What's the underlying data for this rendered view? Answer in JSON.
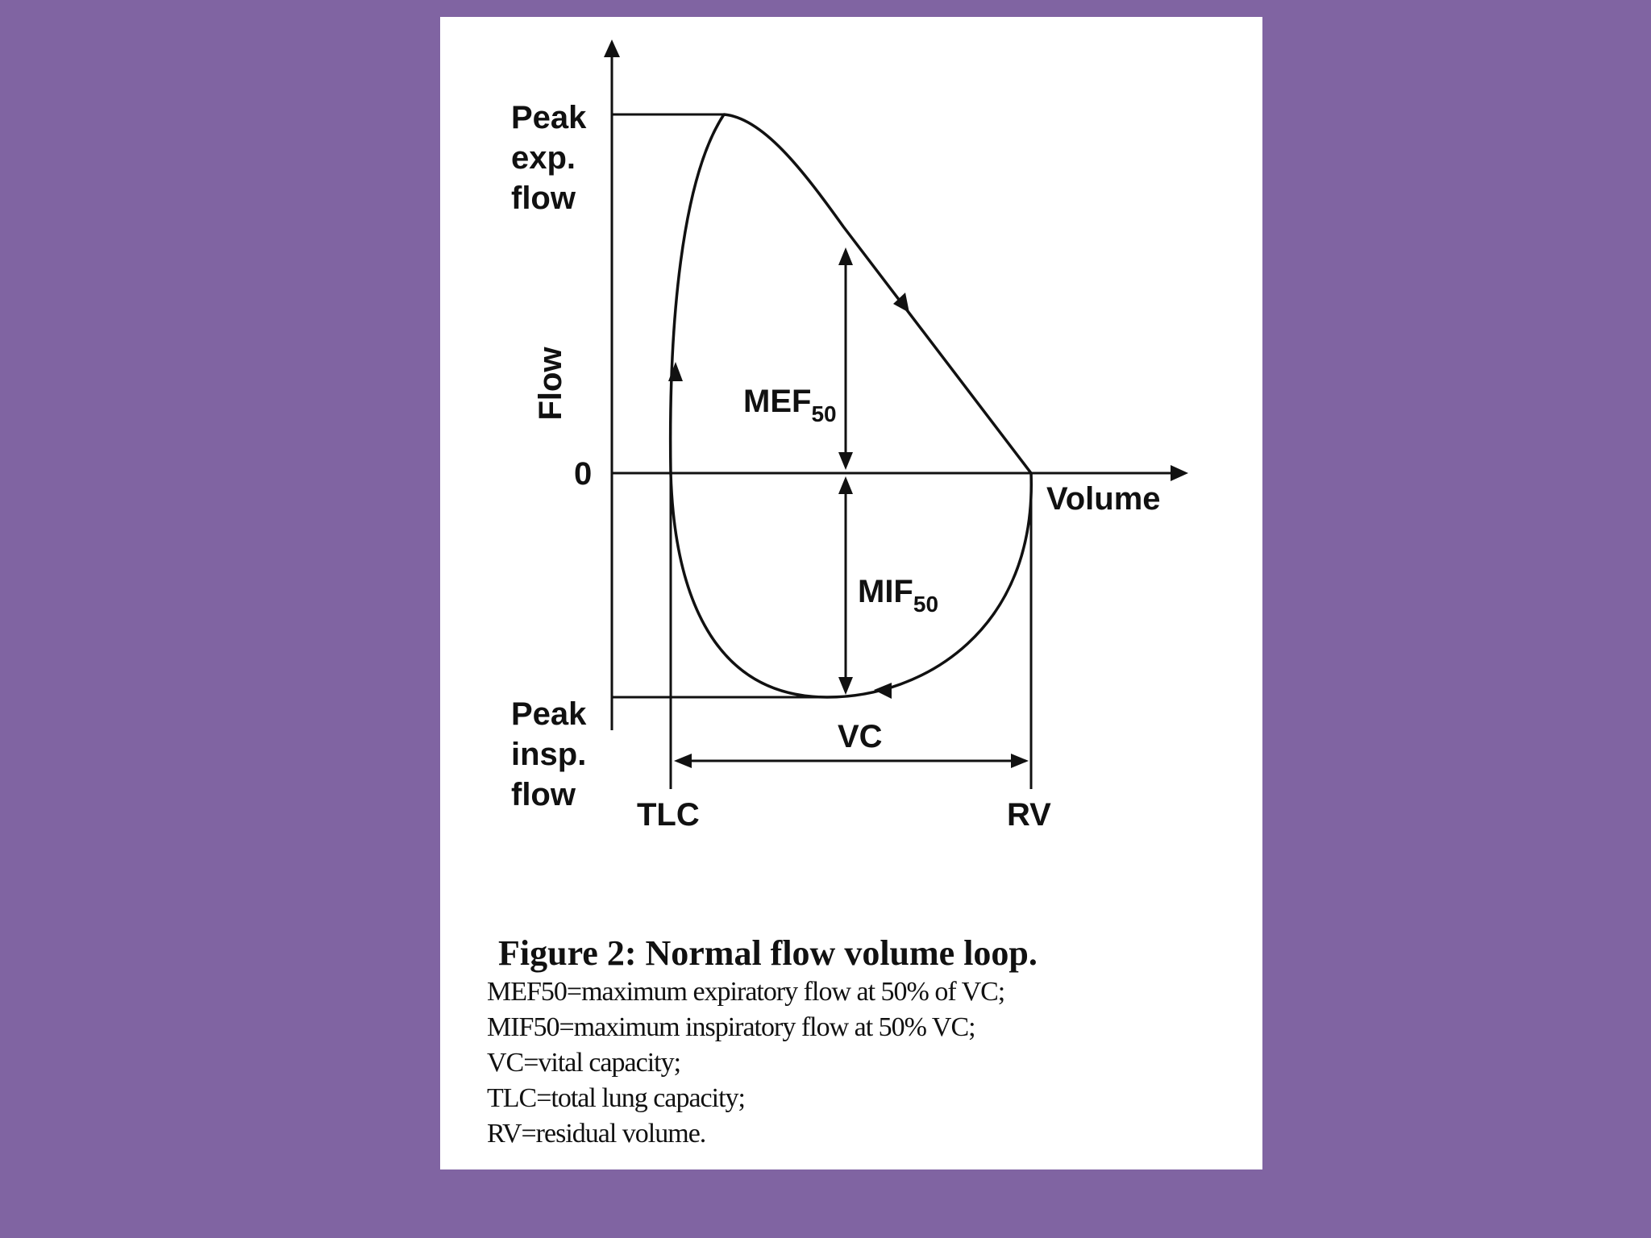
{
  "diagram": {
    "y_axis_title": "Flow",
    "x_axis_title": "Volume",
    "zero_label": "0",
    "peak_exp_lines": [
      "Peak",
      "exp.",
      "flow"
    ],
    "peak_insp_lines": [
      "Peak",
      "insp.",
      "flow"
    ],
    "mef_main": "MEF",
    "mef_sub": "50",
    "mif_main": "MIF",
    "mif_sub": "50",
    "vc_label": "VC",
    "tlc_label": "TLC",
    "rv_label": "RV"
  },
  "caption": {
    "title": "Figure 2: Normal flow volume loop.",
    "lines": [
      "MEF50=maximum expiratory flow at 50% of VC;",
      "MIF50=maximum inspiratory flow at 50% VC;",
      "VC=vital capacity;",
      "TLC=total lung capacity;",
      "RV=residual volume."
    ]
  },
  "colors": {
    "background": "#8064a2",
    "card": "#ffffff",
    "ink": "#111111"
  }
}
